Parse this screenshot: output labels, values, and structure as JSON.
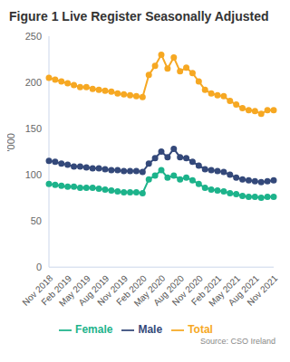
{
  "chart_data": {
    "type": "line",
    "title": "Figure 1 Live Register Seasonally Adjusted",
    "y_label": "'000",
    "source": "Source: CSO Ireland",
    "categories": [
      "Nov 2018",
      null,
      null,
      "Feb 2019",
      null,
      null,
      "May 2019",
      null,
      null,
      "Aug 2019",
      null,
      null,
      "Nov 2019",
      null,
      null,
      "Feb 2020",
      null,
      null,
      "May 2020",
      null,
      null,
      "Aug 2020",
      null,
      null,
      "Nov 2020",
      null,
      null,
      "Feb 2021",
      null,
      null,
      "May 2021",
      null,
      null,
      "Aug 2021",
      null,
      null,
      "Nov 2021"
    ],
    "series": [
      {
        "name": "Male",
        "color": "#34497a",
        "marker": "circle",
        "values": [
          115,
          114,
          112,
          111,
          109,
          109,
          108,
          107,
          107,
          106,
          105,
          105,
          104,
          104,
          104,
          103,
          112,
          118,
          125,
          119,
          128,
          119,
          118,
          114,
          110,
          106,
          105,
          104,
          103,
          100,
          97,
          95,
          94,
          93,
          92,
          93,
          94
        ]
      },
      {
        "name": "Female",
        "color": "#1db38b",
        "marker": "circle",
        "values": [
          90,
          89,
          88,
          87,
          87,
          86,
          86,
          86,
          85,
          84,
          83,
          82,
          81,
          81,
          81,
          80,
          95,
          99,
          105,
          97,
          99,
          95,
          97,
          94,
          90,
          86,
          84,
          83,
          82,
          80,
          79,
          77,
          76,
          76,
          75,
          76,
          76
        ]
      },
      {
        "name": "Total",
        "color": "#f6a823",
        "marker": "circle",
        "values": [
          205,
          203,
          201,
          199,
          197,
          195,
          195,
          193,
          192,
          191,
          190,
          188,
          187,
          186,
          185,
          184,
          208,
          218,
          230,
          215,
          227,
          212,
          216,
          210,
          201,
          192,
          188,
          186,
          185,
          180,
          176,
          172,
          170,
          169,
          166,
          170,
          170
        ]
      }
    ],
    "ylim": [
      0,
      250
    ],
    "yticks": [
      0,
      50,
      100,
      150,
      200,
      250
    ],
    "grid": false,
    "legend": "bottom"
  }
}
